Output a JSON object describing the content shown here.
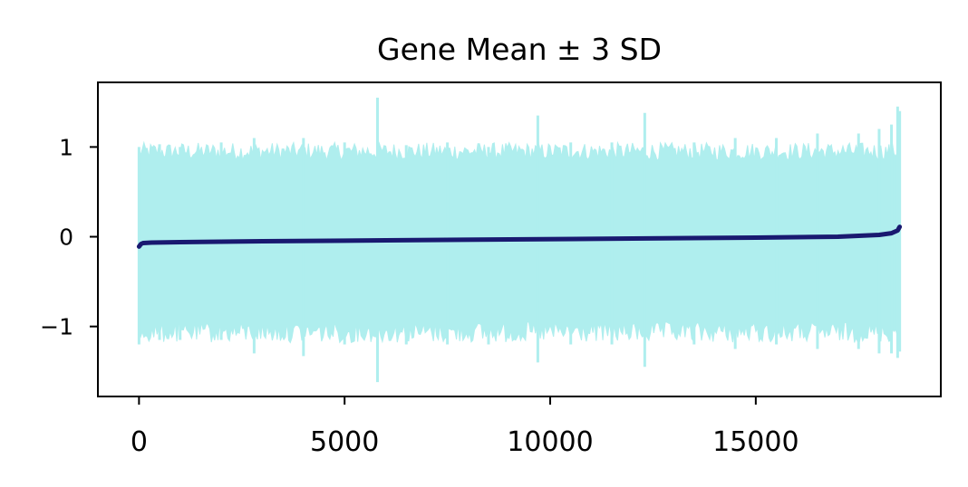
{
  "chart_data": {
    "type": "area",
    "title": "Gene Mean ± 3 SD",
    "xlabel": "",
    "ylabel": "",
    "xlim": [
      -1000,
      19500
    ],
    "ylim": [
      -1.78,
      1.72
    ],
    "x_ticks": [
      0,
      5000,
      10000,
      15000
    ],
    "x_tick_labels": [
      "0",
      "5000",
      "10000",
      "15000"
    ],
    "y_ticks": [
      1,
      0,
      -1
    ],
    "y_tick_labels": [
      "1",
      "0",
      "−1"
    ],
    "grid": false,
    "legend": "none",
    "n_points": 18500,
    "series": [
      {
        "role": "mean",
        "color": "#191970",
        "x": [
          0,
          50,
          100,
          300,
          1000,
          3000,
          6000,
          9000,
          12000,
          15000,
          17000,
          18000,
          18300,
          18450,
          18500
        ],
        "y": [
          -0.11,
          -0.08,
          -0.07,
          -0.065,
          -0.06,
          -0.05,
          -0.04,
          -0.03,
          -0.02,
          -0.01,
          0.0,
          0.02,
          0.04,
          0.07,
          0.11
        ]
      },
      {
        "role": "upper_band",
        "color": "#afeeee",
        "typical_range": [
          0.85,
          1.05
        ],
        "x": [
          0,
          500,
          1000,
          2000,
          2800,
          4000,
          5000,
          5800,
          6500,
          7500,
          8500,
          9700,
          10500,
          11500,
          12300,
          13500,
          14500,
          15500,
          16500,
          17500,
          18000,
          18300,
          18450,
          18500
        ],
        "y": [
          1.0,
          1.03,
          1.0,
          1.05,
          1.1,
          1.1,
          1.05,
          1.55,
          1.02,
          1.05,
          1.0,
          1.35,
          1.05,
          1.05,
          1.38,
          1.05,
          1.1,
          1.1,
          1.15,
          1.15,
          1.2,
          1.25,
          1.45,
          1.4
        ]
      },
      {
        "role": "lower_band",
        "color": "#afeeee",
        "typical_range": [
          -1.18,
          -0.95
        ],
        "x": [
          0,
          500,
          1000,
          2000,
          2800,
          4000,
          5000,
          5800,
          6500,
          7500,
          8500,
          9700,
          10500,
          11500,
          12300,
          13500,
          14500,
          15500,
          16500,
          17500,
          18000,
          18300,
          18450,
          18500
        ],
        "y": [
          -1.2,
          -1.15,
          -1.15,
          -1.15,
          -1.3,
          -1.33,
          -1.2,
          -1.62,
          -1.2,
          -1.2,
          -1.2,
          -1.4,
          -1.2,
          -1.2,
          -1.45,
          -1.2,
          -1.25,
          -1.2,
          -1.25,
          -1.25,
          -1.3,
          -1.3,
          -1.35,
          -1.28
        ]
      }
    ]
  }
}
